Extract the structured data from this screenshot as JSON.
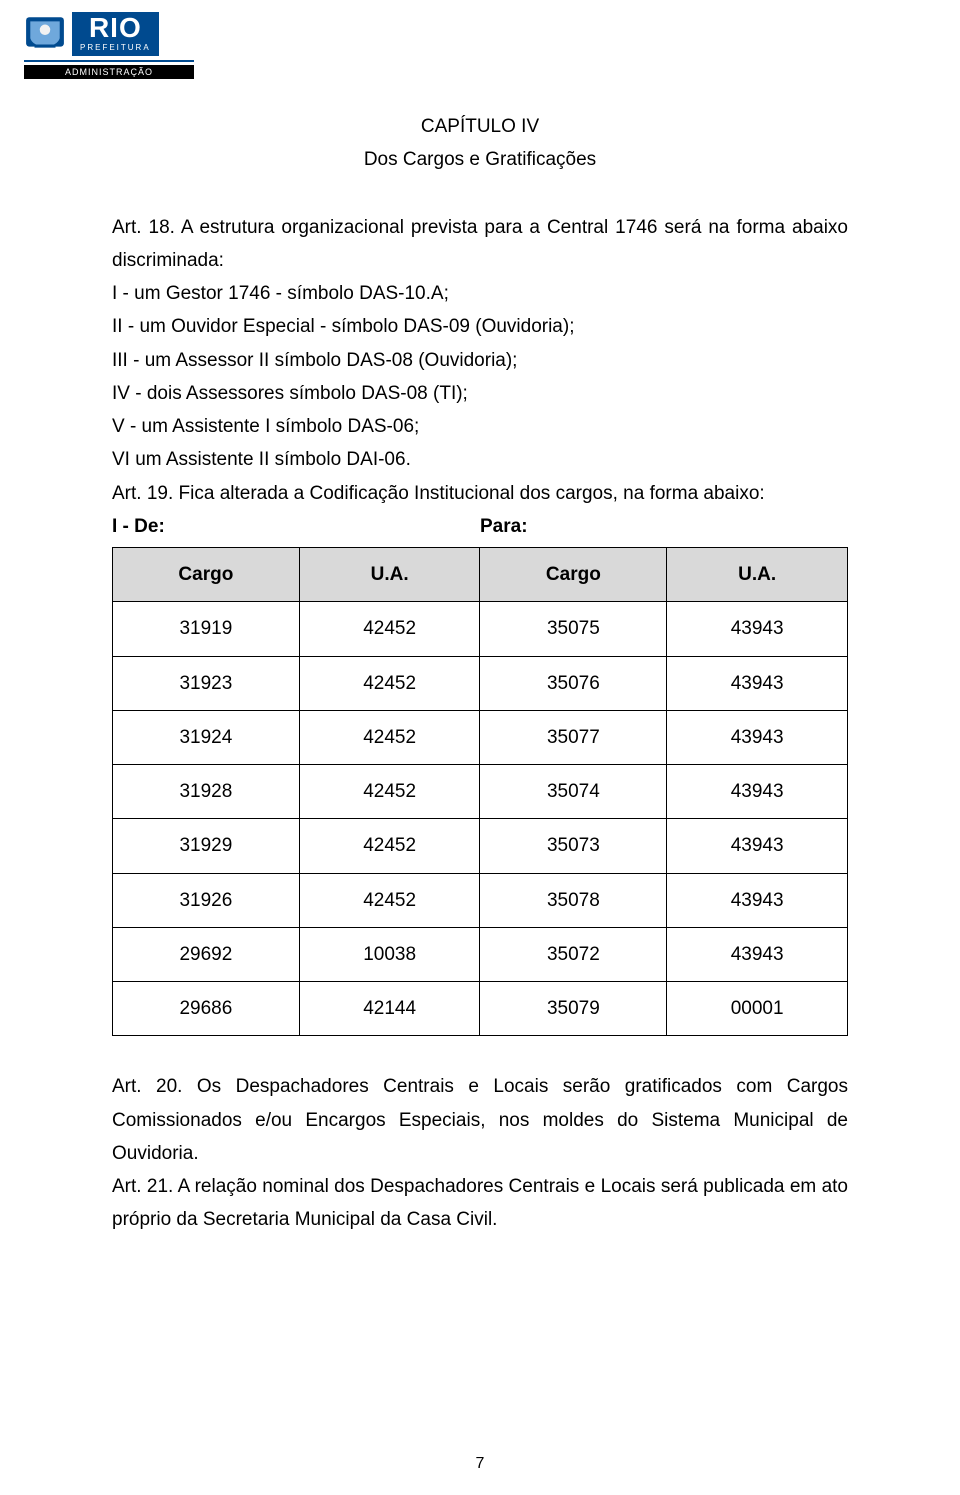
{
  "logo": {
    "rio": "RIO",
    "prefeitura": "PREFEITURA",
    "admin": "ADMINISTRAÇÃO",
    "crest_fill": "#004a8f",
    "crest_accent": "#f2f2f2"
  },
  "chapter_title": "CAPÍTULO IV",
  "chapter_subtitle": "Dos Cargos e Gratificações",
  "art18_lead": "Art. 18. A estrutura organizacional prevista para a Central 1746 será na forma abaixo discriminada:",
  "art18_items": [
    "I - um Gestor 1746 - símbolo DAS-10.A;",
    "II - um Ouvidor Especial - símbolo DAS-09 (Ouvidoria);",
    "III - um Assessor II símbolo DAS-08 (Ouvidoria);",
    "IV - dois Assessores símbolo DAS-08 (TI);",
    "V - um Assistente I símbolo DAS-06;",
    "VI um Assistente II símbolo DAI-06."
  ],
  "art19_lead": "Art. 19. Fica alterada a Codificação Institucional dos cargos, na forma abaixo:",
  "table_labels": {
    "de": "I - De:",
    "para": "Para:"
  },
  "table": {
    "headers": [
      "Cargo",
      "U.A.",
      "Cargo",
      "U.A."
    ],
    "header_bg": "#d9d9d9",
    "border_color": "#000000",
    "rows": [
      [
        "31919",
        "42452",
        "35075",
        "43943"
      ],
      [
        "31923",
        "42452",
        "35076",
        "43943"
      ],
      [
        "31924",
        "42452",
        "35077",
        "43943"
      ],
      [
        "31928",
        "42452",
        "35074",
        "43943"
      ],
      [
        "31929",
        "42452",
        "35073",
        "43943"
      ],
      [
        "31926",
        "42452",
        "35078",
        "43943"
      ],
      [
        "29692",
        "10038",
        "35072",
        "43943"
      ],
      [
        "29686",
        "42144",
        "35079",
        "00001"
      ]
    ]
  },
  "art20": "Art. 20. Os Despachadores Centrais e Locais serão gratificados com Cargos Comissionados e/ou Encargos Especiais, nos moldes do Sistema Municipal de Ouvidoria.",
  "art21": "Art. 21. A relação nominal dos Despachadores Centrais e Locais será publicada em ato próprio da Secretaria Municipal da Casa Civil.",
  "page_number": "7"
}
